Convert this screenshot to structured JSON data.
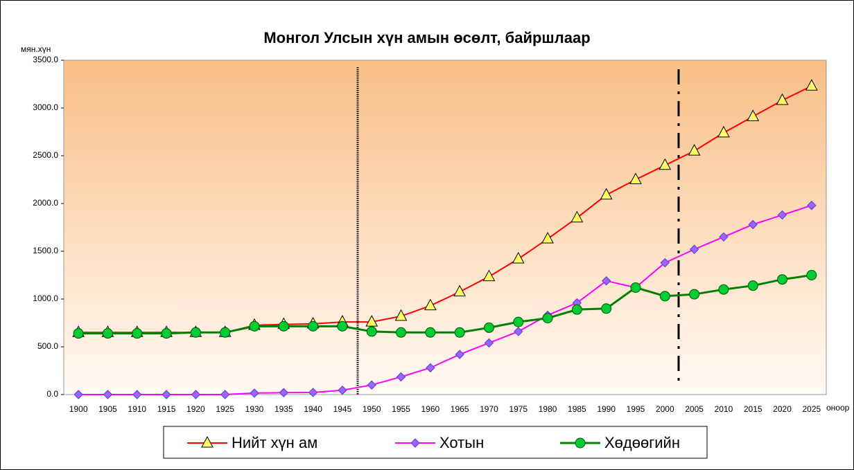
{
  "chart_data": {
    "type": "line",
    "title": "Монгол Улсын хүн амын өсөлт, байршлаар",
    "y_label": "мян.хүн",
    "x_label": "оноор",
    "categories": [
      "1900",
      "1905",
      "1910",
      "1915",
      "1920",
      "1925",
      "1930",
      "1935",
      "1940",
      "1945",
      "1950",
      "1955",
      "1960",
      "1965",
      "1970",
      "1975",
      "1980",
      "1985",
      "1990",
      "1995",
      "2000",
      "2005",
      "2010",
      "2015",
      "2020",
      "2025"
    ],
    "series": [
      {
        "name": "Нийт хүн ам",
        "color": "#ff0000",
        "marker": "triangle",
        "marker_color": "#ffff66",
        "values": [
          650,
          650,
          650,
          650,
          650,
          650,
          725,
          735,
          740,
          760,
          760,
          820,
          930,
          1075,
          1235,
          1420,
          1630,
          1850,
          2090,
          2250,
          2400,
          2550,
          2740,
          2910,
          3080,
          3230
        ]
      },
      {
        "name": "Хотын",
        "color": "#ff00ff",
        "marker": "diamond",
        "marker_color": "#9966ff",
        "values": [
          0,
          0,
          0,
          0,
          0,
          0,
          15,
          20,
          22,
          45,
          100,
          185,
          280,
          420,
          540,
          660,
          830,
          960,
          1190,
          1120,
          1380,
          1520,
          1650,
          1780,
          1880,
          1980
        ]
      },
      {
        "name": "Хөдөөгийн",
        "color": "#008000",
        "marker": "circle",
        "marker_color": "#00cc33",
        "values": [
          640,
          640,
          640,
          640,
          650,
          650,
          715,
          715,
          715,
          715,
          660,
          650,
          650,
          650,
          700,
          760,
          800,
          890,
          900,
          1120,
          1030,
          1050,
          1100,
          1140,
          1205,
          1250
        ]
      }
    ],
    "ylim": [
      0,
      3500
    ],
    "yticks": [
      {
        "value": 0,
        "label": "0.0"
      },
      {
        "value": 500,
        "label": "500.0"
      },
      {
        "value": 1000,
        "label": "1000.0"
      },
      {
        "value": 1500,
        "label": "1500.0"
      },
      {
        "value": 2000,
        "label": "2000.0"
      },
      {
        "value": 2500,
        "label": "2500.0"
      },
      {
        "value": 3000,
        "label": "3000.0"
      },
      {
        "value": 3500,
        "label": "3500.0"
      }
    ],
    "legend": "bottom"
  }
}
